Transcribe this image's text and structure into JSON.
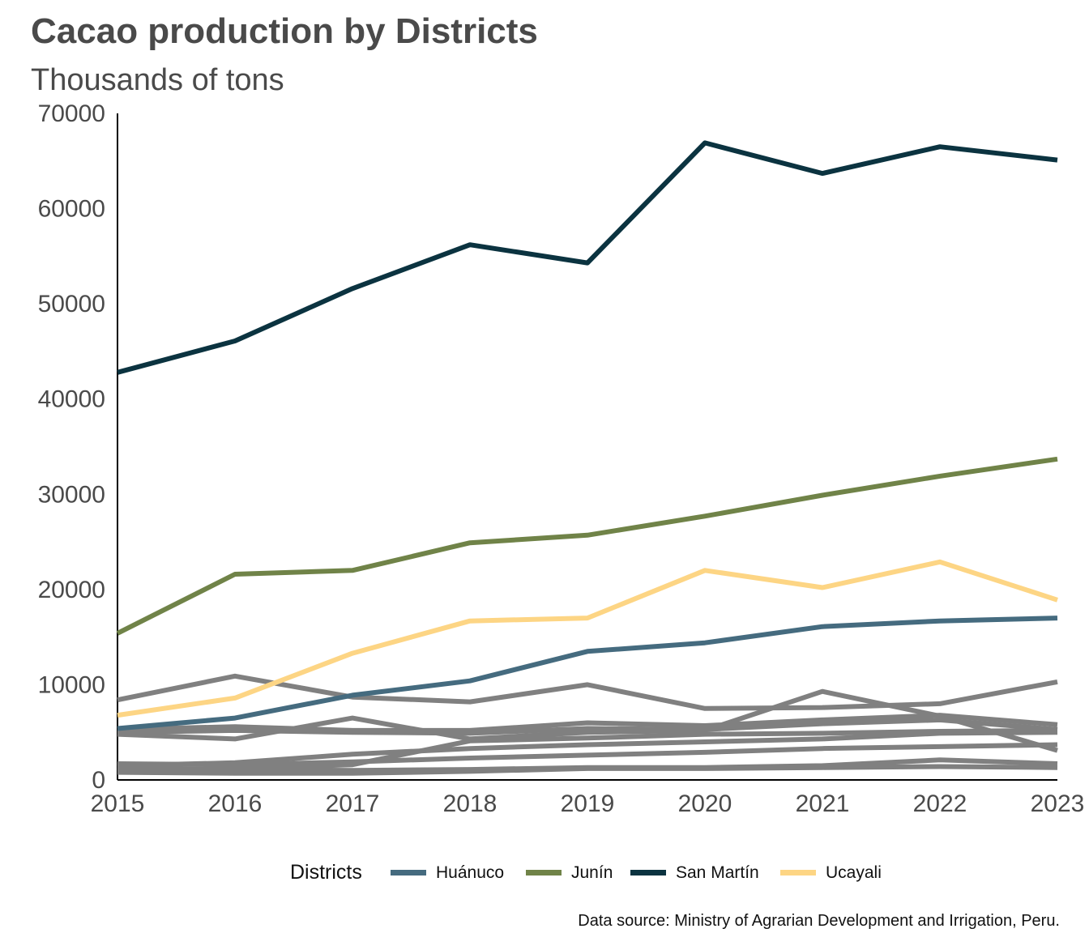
{
  "header": {
    "title": "Cacao production by Districts",
    "subtitle": "Thousands of tons"
  },
  "caption": "Data source: Ministry of Agrarian Development and Irrigation, Peru.",
  "legend": {
    "title": "Districts",
    "items": [
      {
        "label": "Huánuco",
        "color": "#456b7f"
      },
      {
        "label": "Junín",
        "color": "#708348"
      },
      {
        "label": "San Martín",
        "color": "#0b3340"
      },
      {
        "label": "Ucayali",
        "color": "#fdd584"
      }
    ]
  },
  "chart_data": {
    "type": "line",
    "title": "Cacao production by Districts",
    "subtitle": "Thousands of tons",
    "x": [
      2015,
      2016,
      2017,
      2018,
      2019,
      2020,
      2021,
      2022,
      2023
    ],
    "xlim": [
      2015,
      2023
    ],
    "ylim": [
      0,
      70000
    ],
    "y_ticks": [
      0,
      10000,
      20000,
      30000,
      40000,
      50000,
      60000,
      70000
    ],
    "x_ticks": [
      "2015",
      "2016",
      "2017",
      "2018",
      "2019",
      "2020",
      "2021",
      "2022",
      "2023"
    ],
    "grid": false,
    "legend_position": "bottom",
    "background_color": "#808080",
    "series": [
      {
        "name": "San Martín",
        "color": "#0b3340",
        "values": [
          42800,
          46100,
          51600,
          56200,
          54300,
          66900,
          63700,
          66500,
          65100
        ]
      },
      {
        "name": "Junín",
        "color": "#708348",
        "values": [
          15400,
          21600,
          22000,
          24900,
          25700,
          27700,
          29900,
          31900,
          33700
        ]
      },
      {
        "name": "Ucayali",
        "color": "#fdd584",
        "values": [
          6800,
          8600,
          13300,
          16700,
          17000,
          22000,
          20200,
          22900,
          18900
        ]
      },
      {
        "name": "Huánuco",
        "color": "#456b7f",
        "values": [
          5400,
          6500,
          8900,
          10400,
          13500,
          14400,
          16100,
          16700,
          17000
        ]
      }
    ],
    "background_series": [
      {
        "values": [
          8400,
          10900,
          8700,
          8200,
          10000,
          7500,
          7600,
          8000,
          10300
        ]
      },
      {
        "values": [
          4800,
          4300,
          6500,
          4300,
          5000,
          5200,
          9300,
          6700,
          3100
        ]
      },
      {
        "values": [
          5300,
          5600,
          5200,
          5200,
          6000,
          5700,
          6300,
          6800,
          5800
        ]
      },
      {
        "values": [
          5000,
          5200,
          5000,
          4900,
          5400,
          5300,
          5900,
          6300,
          5300
        ]
      },
      {
        "values": [
          1000,
          1200,
          1600,
          4100,
          4400,
          4800,
          4900,
          5100,
          5200
        ]
      },
      {
        "values": [
          1500,
          1800,
          2700,
          3300,
          3700,
          4000,
          4300,
          4900,
          5000
        ]
      },
      {
        "values": [
          1200,
          1100,
          1000,
          1100,
          1300,
          1300,
          1500,
          2100,
          1700
        ]
      },
      {
        "values": [
          800,
          700,
          700,
          900,
          1200,
          1200,
          1300,
          1400,
          1300
        ]
      },
      {
        "values": [
          1700,
          1600,
          1900,
          2300,
          2600,
          2900,
          3300,
          3500,
          3700
        ]
      }
    ]
  }
}
